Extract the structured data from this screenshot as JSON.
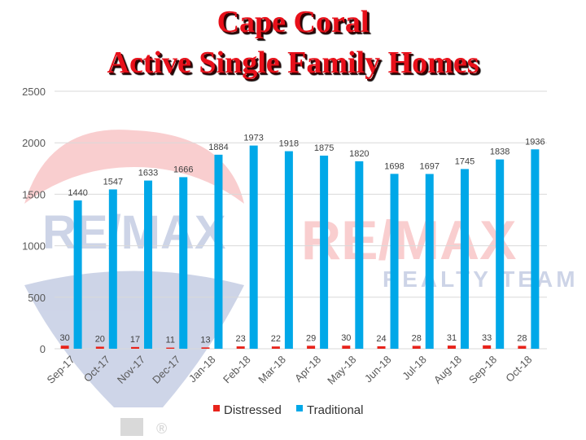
{
  "title": {
    "line1": "Cape Coral",
    "line2": "Active Single Family Homes"
  },
  "watermark": {
    "brand": "RE/MAX",
    "tagline": "REALTY TEAM",
    "registered": "®"
  },
  "colors": {
    "title": "#e8101a",
    "distressed": "#e8231b",
    "traditional": "#00a8e8",
    "grid": "#d9d9d9",
    "watermark_red": "#e8232a",
    "watermark_blue": "#1f3f95"
  },
  "chart_data": {
    "type": "bar",
    "title": "Cape Coral Active Single Family Homes",
    "categories": [
      "Sep-17",
      "Oct-17",
      "Nov-17",
      "Dec-17",
      "Jan-18",
      "Feb-18",
      "Mar-18",
      "Apr-18",
      "May-18",
      "Jun-18",
      "Jul-18",
      "Aug-18",
      "Sep-18",
      "Oct-18"
    ],
    "series": [
      {
        "name": "Distressed",
        "color": "#e8231b",
        "values": [
          30,
          20,
          17,
          11,
          13,
          23,
          22,
          29,
          30,
          24,
          28,
          31,
          33,
          28
        ]
      },
      {
        "name": "Traditional",
        "color": "#00a8e8",
        "values": [
          1440,
          1547,
          1633,
          1666,
          1884,
          1973,
          1918,
          1875,
          1820,
          1698,
          1697,
          1745,
          1838,
          1936
        ]
      }
    ],
    "ylim": [
      0,
      2500
    ],
    "yticks": [
      0,
      500,
      1000,
      1500,
      2000,
      2500
    ],
    "xlabel": "",
    "ylabel": "",
    "grid": true,
    "legend": "bottom"
  }
}
